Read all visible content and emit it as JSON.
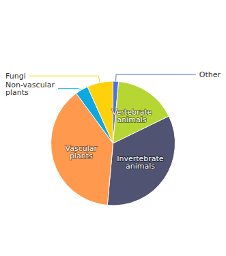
{
  "chart_data": {
    "type": "pie",
    "categories": [
      "Other",
      "Vertebrate\nanimals",
      "Invertebrate\nanimals",
      "Vascular\nplants",
      "Non-vascular\nplants",
      "Fungi"
    ],
    "values": [
      1.5,
      17.0,
      35.0,
      40.0,
      3.5,
      7.0
    ]
  }
}
